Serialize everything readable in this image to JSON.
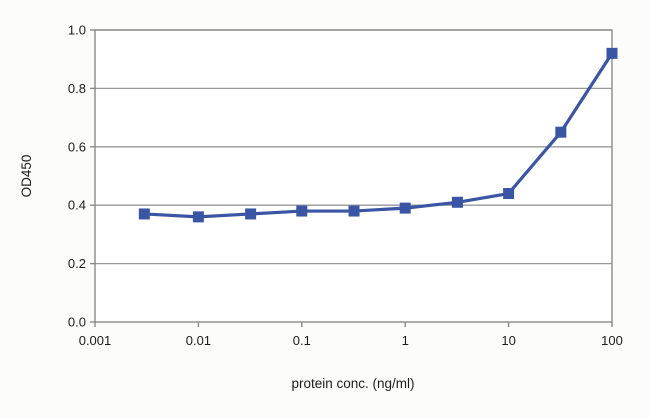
{
  "chart_data": {
    "type": "line",
    "title": "",
    "xlabel": "protein conc. (ng/ml)",
    "ylabel": "OD450",
    "xscale": "log",
    "xlim": [
      0.001,
      100
    ],
    "ylim": [
      0.0,
      1.0
    ],
    "xticks": [
      0.001,
      0.01,
      0.1,
      1,
      10,
      100
    ],
    "xtick_labels": [
      "0.001",
      "0.01",
      "0.1",
      "1",
      "10",
      "100"
    ],
    "yticks": [
      0.0,
      0.2,
      0.4,
      0.6,
      0.8,
      1.0
    ],
    "ytick_labels": [
      "0.0",
      "0.2",
      "0.4",
      "0.6",
      "0.8",
      "1.0"
    ],
    "grid": "horizontal",
    "legend": "none",
    "x": [
      0.003,
      0.01,
      0.032,
      0.1,
      0.32,
      1,
      3.2,
      10,
      32,
      100
    ],
    "series": [
      {
        "name": "OD450",
        "values": [
          0.37,
          0.36,
          0.37,
          0.38,
          0.38,
          0.39,
          0.41,
          0.44,
          0.65,
          0.92
        ]
      }
    ],
    "marker": "square",
    "line_color": "#3a55a4",
    "grid_color": "#979797",
    "axis_color": "#8a8a8a",
    "background": "#ffffff"
  }
}
